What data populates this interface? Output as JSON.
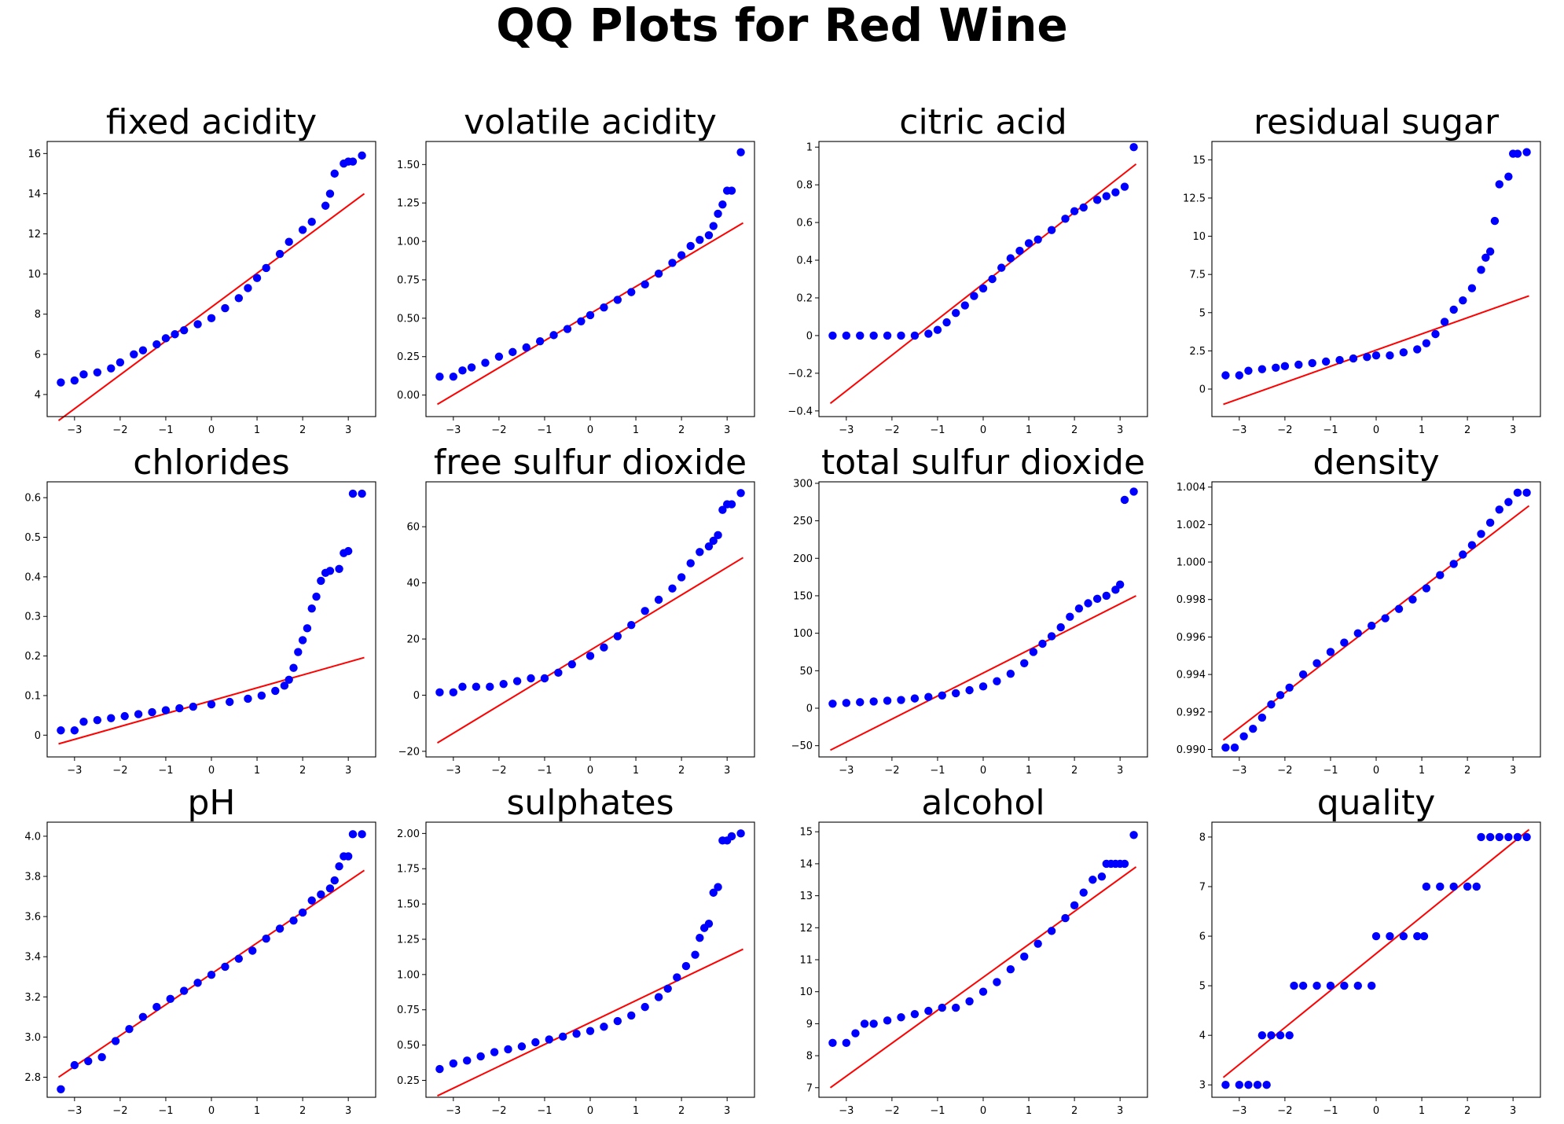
{
  "suptitle": "QQ Plots for Red Wine",
  "colors": {
    "points": "#0000ff",
    "fit_line": "#ff0000"
  },
  "chart_data": [
    {
      "type": "scatter",
      "title": "fixed acidity",
      "xlim": [
        -3.6,
        3.6
      ],
      "ylim": [
        2.9,
        16.6
      ],
      "xticks": [
        -3,
        -2,
        -1,
        0,
        1,
        2,
        3
      ],
      "yticks": [
        4,
        6,
        8,
        10,
        12,
        14,
        16
      ],
      "fit_line": {
        "x": [
          -3.35,
          3.35
        ],
        "y": [
          2.7,
          14.0
        ]
      },
      "points": {
        "x": [
          -3.3,
          -3.0,
          -2.8,
          -2.5,
          -2.2,
          -2.0,
          -1.7,
          -1.5,
          -1.2,
          -1.0,
          -0.8,
          -0.6,
          -0.3,
          0.0,
          0.3,
          0.6,
          0.8,
          1.0,
          1.2,
          1.5,
          1.7,
          2.0,
          2.2,
          2.5,
          2.6,
          2.7,
          2.9,
          3.0,
          3.1,
          3.3
        ],
        "y": [
          4.6,
          4.7,
          5.0,
          5.1,
          5.3,
          5.6,
          6.0,
          6.2,
          6.5,
          6.8,
          7.0,
          7.2,
          7.5,
          7.8,
          8.3,
          8.8,
          9.3,
          9.8,
          10.3,
          11.0,
          11.6,
          12.2,
          12.6,
          13.4,
          14.0,
          15.0,
          15.5,
          15.6,
          15.6,
          15.9
        ]
      }
    },
    {
      "type": "scatter",
      "title": "volatile acidity",
      "xlim": [
        -3.6,
        3.6
      ],
      "ylim": [
        -0.14,
        1.65
      ],
      "xticks": [
        -3,
        -2,
        -1,
        0,
        1,
        2,
        3
      ],
      "yticks": [
        0.0,
        0.25,
        0.5,
        0.75,
        1.0,
        1.25,
        1.5
      ],
      "tick_labels": [
        "0.00",
        "0.25",
        "0.50",
        "0.75",
        "1.00",
        "1.25",
        "1.50"
      ],
      "fit_line": {
        "x": [
          -3.35,
          3.35
        ],
        "y": [
          -0.06,
          1.12
        ]
      },
      "points": {
        "x": [
          -3.3,
          -3.0,
          -2.8,
          -2.6,
          -2.3,
          -2.0,
          -1.7,
          -1.4,
          -1.1,
          -0.8,
          -0.5,
          -0.2,
          0.0,
          0.3,
          0.6,
          0.9,
          1.2,
          1.5,
          1.8,
          2.0,
          2.2,
          2.4,
          2.6,
          2.7,
          2.8,
          2.9,
          3.0,
          3.1,
          3.3
        ],
        "y": [
          0.12,
          0.12,
          0.16,
          0.18,
          0.21,
          0.25,
          0.28,
          0.31,
          0.35,
          0.39,
          0.43,
          0.48,
          0.52,
          0.57,
          0.62,
          0.67,
          0.72,
          0.79,
          0.86,
          0.91,
          0.97,
          1.01,
          1.04,
          1.1,
          1.18,
          1.24,
          1.33,
          1.33,
          1.58
        ]
      }
    },
    {
      "type": "scatter",
      "title": "citric acid",
      "xlim": [
        -3.6,
        3.6
      ],
      "ylim": [
        -0.43,
        1.03
      ],
      "xticks": [
        -3,
        -2,
        -1,
        0,
        1,
        2,
        3
      ],
      "yticks": [
        -0.4,
        -0.2,
        0.0,
        0.2,
        0.4,
        0.6,
        0.8,
        1.0
      ],
      "fit_line": {
        "x": [
          -3.35,
          3.35
        ],
        "y": [
          -0.36,
          0.91
        ]
      },
      "points": {
        "x": [
          -3.3,
          -3.0,
          -2.7,
          -2.4,
          -2.1,
          -1.8,
          -1.5,
          -1.2,
          -1.0,
          -0.8,
          -0.6,
          -0.4,
          -0.2,
          0.0,
          0.2,
          0.4,
          0.6,
          0.8,
          1.0,
          1.2,
          1.5,
          1.8,
          2.0,
          2.2,
          2.5,
          2.7,
          2.9,
          3.1,
          3.3
        ],
        "y": [
          0.0,
          0.0,
          0.0,
          0.0,
          0.0,
          0.0,
          0.0,
          0.01,
          0.03,
          0.07,
          0.12,
          0.16,
          0.21,
          0.25,
          0.3,
          0.36,
          0.41,
          0.45,
          0.49,
          0.51,
          0.56,
          0.62,
          0.66,
          0.68,
          0.72,
          0.74,
          0.76,
          0.79,
          1.0
        ]
      }
    },
    {
      "type": "scatter",
      "title": "residual sugar",
      "xlim": [
        -3.6,
        3.6
      ],
      "ylim": [
        -1.8,
        16.2
      ],
      "xticks": [
        -3,
        -2,
        -1,
        0,
        1,
        2,
        3
      ],
      "yticks": [
        0.0,
        2.5,
        5.0,
        7.5,
        10.0,
        12.5,
        15.0
      ],
      "fit_line": {
        "x": [
          -3.35,
          3.35
        ],
        "y": [
          -1.0,
          6.1
        ]
      },
      "points": {
        "x": [
          -3.3,
          -3.0,
          -2.8,
          -2.5,
          -2.2,
          -2.0,
          -1.7,
          -1.4,
          -1.1,
          -0.8,
          -0.5,
          -0.2,
          0.0,
          0.3,
          0.6,
          0.9,
          1.1,
          1.3,
          1.5,
          1.7,
          1.9,
          2.1,
          2.3,
          2.4,
          2.5,
          2.6,
          2.7,
          2.9,
          3.0,
          3.1,
          3.3
        ],
        "y": [
          0.9,
          0.9,
          1.2,
          1.3,
          1.4,
          1.5,
          1.6,
          1.7,
          1.8,
          1.9,
          2.0,
          2.1,
          2.2,
          2.2,
          2.4,
          2.6,
          3.0,
          3.6,
          4.4,
          5.2,
          5.8,
          6.6,
          7.8,
          8.6,
          9.0,
          11.0,
          13.4,
          13.9,
          15.4,
          15.4,
          15.5
        ]
      }
    },
    {
      "type": "scatter",
      "title": "chlorides",
      "xlim": [
        -3.6,
        3.6
      ],
      "ylim": [
        -0.055,
        0.64
      ],
      "xticks": [
        -3,
        -2,
        -1,
        0,
        1,
        2,
        3
      ],
      "yticks": [
        0.0,
        0.1,
        0.2,
        0.3,
        0.4,
        0.5,
        0.6
      ],
      "fit_line": {
        "x": [
          -3.35,
          3.35
        ],
        "y": [
          -0.022,
          0.196
        ]
      },
      "points": {
        "x": [
          -3.3,
          -3.0,
          -2.8,
          -2.5,
          -2.2,
          -1.9,
          -1.6,
          -1.3,
          -1.0,
          -0.7,
          -0.4,
          0.0,
          0.4,
          0.8,
          1.1,
          1.4,
          1.6,
          1.7,
          1.8,
          1.9,
          2.0,
          2.1,
          2.2,
          2.3,
          2.4,
          2.5,
          2.6,
          2.8,
          2.9,
          3.0,
          3.1,
          3.3
        ],
        "y": [
          0.012,
          0.012,
          0.034,
          0.038,
          0.043,
          0.048,
          0.053,
          0.058,
          0.063,
          0.068,
          0.072,
          0.078,
          0.084,
          0.092,
          0.1,
          0.112,
          0.125,
          0.14,
          0.17,
          0.21,
          0.24,
          0.27,
          0.32,
          0.35,
          0.39,
          0.41,
          0.415,
          0.42,
          0.46,
          0.465,
          0.61,
          0.61
        ]
      }
    },
    {
      "type": "scatter",
      "title": "free sulfur dioxide",
      "xlim": [
        -3.6,
        3.6
      ],
      "ylim": [
        -22,
        76
      ],
      "xticks": [
        -3,
        -2,
        -1,
        0,
        1,
        2,
        3
      ],
      "yticks": [
        -20,
        0,
        20,
        40,
        60
      ],
      "fit_line": {
        "x": [
          -3.35,
          3.35
        ],
        "y": [
          -17.0,
          49.0
        ]
      },
      "points": {
        "x": [
          -3.3,
          -3.0,
          -2.8,
          -2.5,
          -2.2,
          -1.9,
          -1.6,
          -1.3,
          -1.0,
          -0.7,
          -0.4,
          0.0,
          0.3,
          0.6,
          0.9,
          1.2,
          1.5,
          1.8,
          2.0,
          2.2,
          2.4,
          2.6,
          2.7,
          2.8,
          2.9,
          3.0,
          3.1,
          3.3
        ],
        "y": [
          1,
          1,
          3,
          3,
          3,
          4,
          5,
          6,
          6,
          8,
          11,
          14,
          17,
          21,
          25,
          30,
          34,
          38,
          42,
          47,
          51,
          53,
          55,
          57,
          66,
          68,
          68,
          72
        ]
      }
    },
    {
      "type": "scatter",
      "title": "total sulfur dioxide",
      "xlim": [
        -3.6,
        3.6
      ],
      "ylim": [
        -65,
        302
      ],
      "xticks": [
        -3,
        -2,
        -1,
        0,
        1,
        2,
        3
      ],
      "yticks": [
        -50,
        0,
        50,
        100,
        150,
        200,
        250,
        300
      ],
      "fit_line": {
        "x": [
          -3.35,
          3.35
        ],
        "y": [
          -56,
          150
        ]
      },
      "points": {
        "x": [
          -3.3,
          -3.0,
          -2.7,
          -2.4,
          -2.1,
          -1.8,
          -1.5,
          -1.2,
          -0.9,
          -0.6,
          -0.3,
          0.0,
          0.3,
          0.6,
          0.9,
          1.1,
          1.3,
          1.5,
          1.7,
          1.9,
          2.1,
          2.3,
          2.5,
          2.7,
          2.9,
          3.0,
          3.1,
          3.3
        ],
        "y": [
          6,
          7,
          8,
          9,
          10,
          11,
          13,
          15,
          17,
          20,
          24,
          29,
          36,
          46,
          60,
          75,
          86,
          96,
          108,
          122,
          133,
          140,
          146,
          150,
          158,
          165,
          278,
          289
        ]
      }
    },
    {
      "type": "scatter",
      "title": "density",
      "xlim": [
        -3.6,
        3.6
      ],
      "ylim": [
        0.9896,
        1.00428
      ],
      "xticks": [
        -3,
        -2,
        -1,
        0,
        1,
        2,
        3
      ],
      "yticks": [
        0.99,
        0.992,
        0.994,
        0.996,
        0.998,
        1.0,
        1.002,
        1.004
      ],
      "tick_labels": [
        "0.990",
        "0.992",
        "0.994",
        "0.996",
        "0.998",
        "1.000",
        "1.002",
        "1.004"
      ],
      "fit_line": {
        "x": [
          -3.35,
          3.35
        ],
        "y": [
          0.9905,
          1.003
        ]
      },
      "points": {
        "x": [
          -3.3,
          -3.1,
          -2.9,
          -2.7,
          -2.5,
          -2.3,
          -2.1,
          -1.9,
          -1.6,
          -1.3,
          -1.0,
          -0.7,
          -0.4,
          -0.1,
          0.2,
          0.5,
          0.8,
          1.1,
          1.4,
          1.7,
          1.9,
          2.1,
          2.3,
          2.5,
          2.7,
          2.9,
          3.1,
          3.3
        ],
        "y": [
          0.9901,
          0.9901,
          0.9907,
          0.9911,
          0.9917,
          0.9924,
          0.9929,
          0.9933,
          0.994,
          0.9946,
          0.9952,
          0.9957,
          0.9962,
          0.9966,
          0.997,
          0.9975,
          0.998,
          0.9986,
          0.9993,
          0.9999,
          1.0004,
          1.0009,
          1.0015,
          1.0021,
          1.0028,
          1.0032,
          1.0037,
          1.0037
        ]
      }
    },
    {
      "type": "scatter",
      "title": "pH",
      "xlim": [
        -3.6,
        3.6
      ],
      "ylim": [
        2.7,
        4.07
      ],
      "xticks": [
        -3,
        -2,
        -1,
        0,
        1,
        2,
        3
      ],
      "yticks": [
        2.8,
        3.0,
        3.2,
        3.4,
        3.6,
        3.8,
        4.0
      ],
      "tick_labels": [
        "2.8",
        "3.0",
        "3.2",
        "3.4",
        "3.6",
        "3.8",
        "4.0"
      ],
      "fit_line": {
        "x": [
          -3.35,
          3.35
        ],
        "y": [
          2.8,
          3.83
        ]
      },
      "points": {
        "x": [
          -3.3,
          -3.0,
          -2.7,
          -2.4,
          -2.1,
          -1.8,
          -1.5,
          -1.2,
          -0.9,
          -0.6,
          -0.3,
          0.0,
          0.3,
          0.6,
          0.9,
          1.2,
          1.5,
          1.8,
          2.0,
          2.2,
          2.4,
          2.6,
          2.7,
          2.8,
          2.9,
          3.0,
          3.1,
          3.3
        ],
        "y": [
          2.74,
          2.86,
          2.88,
          2.9,
          2.98,
          3.04,
          3.1,
          3.15,
          3.19,
          3.23,
          3.27,
          3.31,
          3.35,
          3.39,
          3.43,
          3.49,
          3.54,
          3.58,
          3.62,
          3.68,
          3.71,
          3.74,
          3.78,
          3.85,
          3.9,
          3.9,
          4.01,
          4.01
        ]
      }
    },
    {
      "type": "scatter",
      "title": "sulphates",
      "xlim": [
        -3.6,
        3.6
      ],
      "ylim": [
        0.13,
        2.08
      ],
      "xticks": [
        -3,
        -2,
        -1,
        0,
        1,
        2,
        3
      ],
      "yticks": [
        0.25,
        0.5,
        0.75,
        1.0,
        1.25,
        1.5,
        1.75,
        2.0
      ],
      "tick_labels": [
        "0.25",
        "0.50",
        "0.75",
        "1.00",
        "1.25",
        "1.50",
        "1.75",
        "2.00"
      ],
      "fit_line": {
        "x": [
          -3.35,
          3.35
        ],
        "y": [
          0.14,
          1.18
        ]
      },
      "points": {
        "x": [
          -3.3,
          -3.0,
          -2.7,
          -2.4,
          -2.1,
          -1.8,
          -1.5,
          -1.2,
          -0.9,
          -0.6,
          -0.3,
          0.0,
          0.3,
          0.6,
          0.9,
          1.2,
          1.5,
          1.7,
          1.9,
          2.1,
          2.3,
          2.4,
          2.5,
          2.6,
          2.7,
          2.8,
          2.9,
          3.0,
          3.1,
          3.3
        ],
        "y": [
          0.33,
          0.37,
          0.39,
          0.42,
          0.45,
          0.47,
          0.49,
          0.52,
          0.54,
          0.56,
          0.58,
          0.6,
          0.63,
          0.67,
          0.71,
          0.77,
          0.84,
          0.9,
          0.98,
          1.06,
          1.14,
          1.26,
          1.33,
          1.36,
          1.58,
          1.62,
          1.95,
          1.95,
          1.98,
          2.0
        ]
      }
    },
    {
      "type": "scatter",
      "title": "alcohol",
      "xlim": [
        -3.6,
        3.6
      ],
      "ylim": [
        6.7,
        15.3
      ],
      "xticks": [
        -3,
        -2,
        -1,
        0,
        1,
        2,
        3
      ],
      "yticks": [
        7,
        8,
        9,
        10,
        11,
        12,
        13,
        14,
        15
      ],
      "fit_line": {
        "x": [
          -3.35,
          3.35
        ],
        "y": [
          7.0,
          13.9
        ]
      },
      "points": {
        "x": [
          -3.3,
          -3.0,
          -2.8,
          -2.6,
          -2.4,
          -2.1,
          -1.8,
          -1.5,
          -1.2,
          -0.9,
          -0.6,
          -0.3,
          0.0,
          0.3,
          0.6,
          0.9,
          1.2,
          1.5,
          1.8,
          2.0,
          2.2,
          2.4,
          2.6,
          2.7,
          2.8,
          2.9,
          3.0,
          3.1,
          3.3
        ],
        "y": [
          8.4,
          8.4,
          8.7,
          9.0,
          9.0,
          9.1,
          9.2,
          9.3,
          9.4,
          9.5,
          9.5,
          9.7,
          10.0,
          10.3,
          10.7,
          11.1,
          11.5,
          11.9,
          12.3,
          12.7,
          13.1,
          13.5,
          13.6,
          14.0,
          14.0,
          14.0,
          14.0,
          14.0,
          14.9
        ]
      }
    },
    {
      "type": "scatter",
      "title": "quality",
      "xlim": [
        -3.6,
        3.6
      ],
      "ylim": [
        2.75,
        8.3
      ],
      "xticks": [
        -3,
        -2,
        -1,
        0,
        1,
        2,
        3
      ],
      "yticks": [
        3,
        4,
        5,
        6,
        7,
        8
      ],
      "fit_line": {
        "x": [
          -3.35,
          3.35
        ],
        "y": [
          3.15,
          8.15
        ]
      },
      "points": {
        "x": [
          -3.3,
          -3.0,
          -2.8,
          -2.6,
          -2.4,
          -2.5,
          -2.3,
          -2.1,
          -1.9,
          -1.8,
          -1.6,
          -1.3,
          -1.0,
          -0.7,
          -0.4,
          -0.1,
          0.0,
          0.3,
          0.6,
          0.9,
          1.05,
          1.1,
          1.4,
          1.7,
          2.0,
          2.2,
          2.3,
          2.5,
          2.7,
          2.9,
          3.1,
          3.3
        ],
        "y": [
          3,
          3,
          3,
          3,
          3,
          4,
          4,
          4,
          4,
          5,
          5,
          5,
          5,
          5,
          5,
          5,
          6,
          6,
          6,
          6,
          6,
          7,
          7,
          7,
          7,
          7,
          8,
          8,
          8,
          8,
          8,
          8
        ]
      }
    }
  ]
}
